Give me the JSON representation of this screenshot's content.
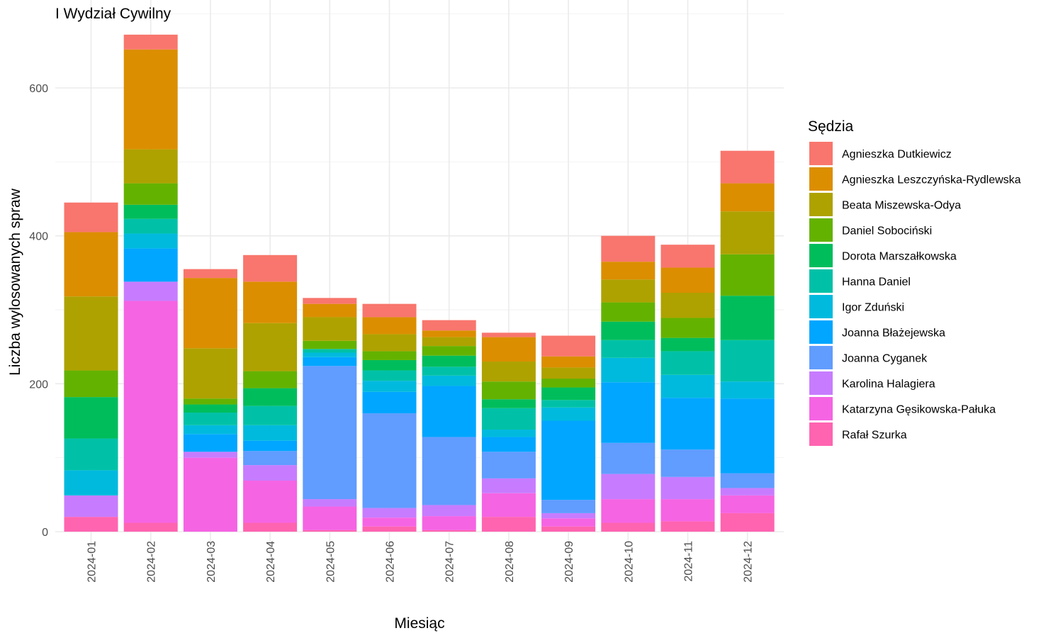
{
  "chart_data": {
    "type": "bar",
    "stacked": true,
    "title": "I Wydział Cywilny",
    "xlabel": "Miesiąc",
    "ylabel": "Liczba wylosowanych spraw",
    "ylim": [
      -20,
      700
    ],
    "y_ticks": [
      0,
      200,
      400,
      600
    ],
    "grid": true,
    "legend_title": "Sędzia",
    "legend_position": "right",
    "categories": [
      "2024-01",
      "2024-02",
      "2024-03",
      "2024-04",
      "2024-05",
      "2024-06",
      "2024-07",
      "2024-08",
      "2024-09",
      "2024-10",
      "2024-11",
      "2024-12"
    ],
    "series": [
      {
        "name": "Agnieszka Dutkiewicz",
        "color": "#F8766D",
        "values": [
          40,
          20,
          12,
          36,
          8,
          18,
          14,
          6,
          28,
          35,
          31,
          44
        ]
      },
      {
        "name": "Agnieszka Leszczyńska-Rydlewska",
        "color": "#DB8E00",
        "values": [
          87,
          135,
          95,
          56,
          18,
          23,
          9,
          33,
          15,
          24,
          34,
          38
        ]
      },
      {
        "name": "Beata Miszewska-Odya",
        "color": "#AEA200",
        "values": [
          100,
          46,
          68,
          65,
          32,
          23,
          12,
          27,
          15,
          31,
          34,
          58
        ]
      },
      {
        "name": "Daniel Sobociński",
        "color": "#64B200",
        "values": [
          36,
          29,
          8,
          23,
          11,
          12,
          13,
          24,
          12,
          26,
          27,
          56
        ]
      },
      {
        "name": "Dorota Marszałkowska",
        "color": "#00BD5C",
        "values": [
          56,
          19,
          11,
          24,
          0,
          14,
          15,
          12,
          17,
          25,
          18,
          60
        ]
      },
      {
        "name": "Hanna Daniel",
        "color": "#00C1A7",
        "values": [
          43,
          20,
          17,
          26,
          5,
          14,
          12,
          29,
          10,
          24,
          32,
          56
        ]
      },
      {
        "name": "Igor Zduński",
        "color": "#00BADE",
        "values": [
          34,
          20,
          12,
          21,
          6,
          15,
          14,
          10,
          18,
          33,
          31,
          23
        ]
      },
      {
        "name": "Joanna Błażejewska",
        "color": "#00A6FF",
        "values": [
          0,
          45,
          24,
          14,
          12,
          29,
          69,
          20,
          107,
          82,
          70,
          101
        ]
      },
      {
        "name": "Joanna Cyganek",
        "color": "#619CFF",
        "values": [
          0,
          0,
          0,
          19,
          180,
          128,
          92,
          36,
          18,
          42,
          37,
          20
        ]
      },
      {
        "name": "Karolina Halagiera",
        "color": "#C77CFF",
        "values": [
          29,
          26,
          8,
          21,
          10,
          13,
          15,
          20,
          7,
          34,
          30,
          10
        ]
      },
      {
        "name": "Katarzyna Gęsikowska-Pałuka",
        "color": "#F564E3",
        "values": [
          0,
          300,
          100,
          57,
          32,
          12,
          19,
          32,
          11,
          32,
          30,
          24
        ]
      },
      {
        "name": "Rafał Szurka",
        "color": "#FF64B0",
        "values": [
          20,
          12,
          0,
          12,
          2,
          7,
          2,
          20,
          7,
          12,
          14,
          25
        ]
      }
    ]
  }
}
